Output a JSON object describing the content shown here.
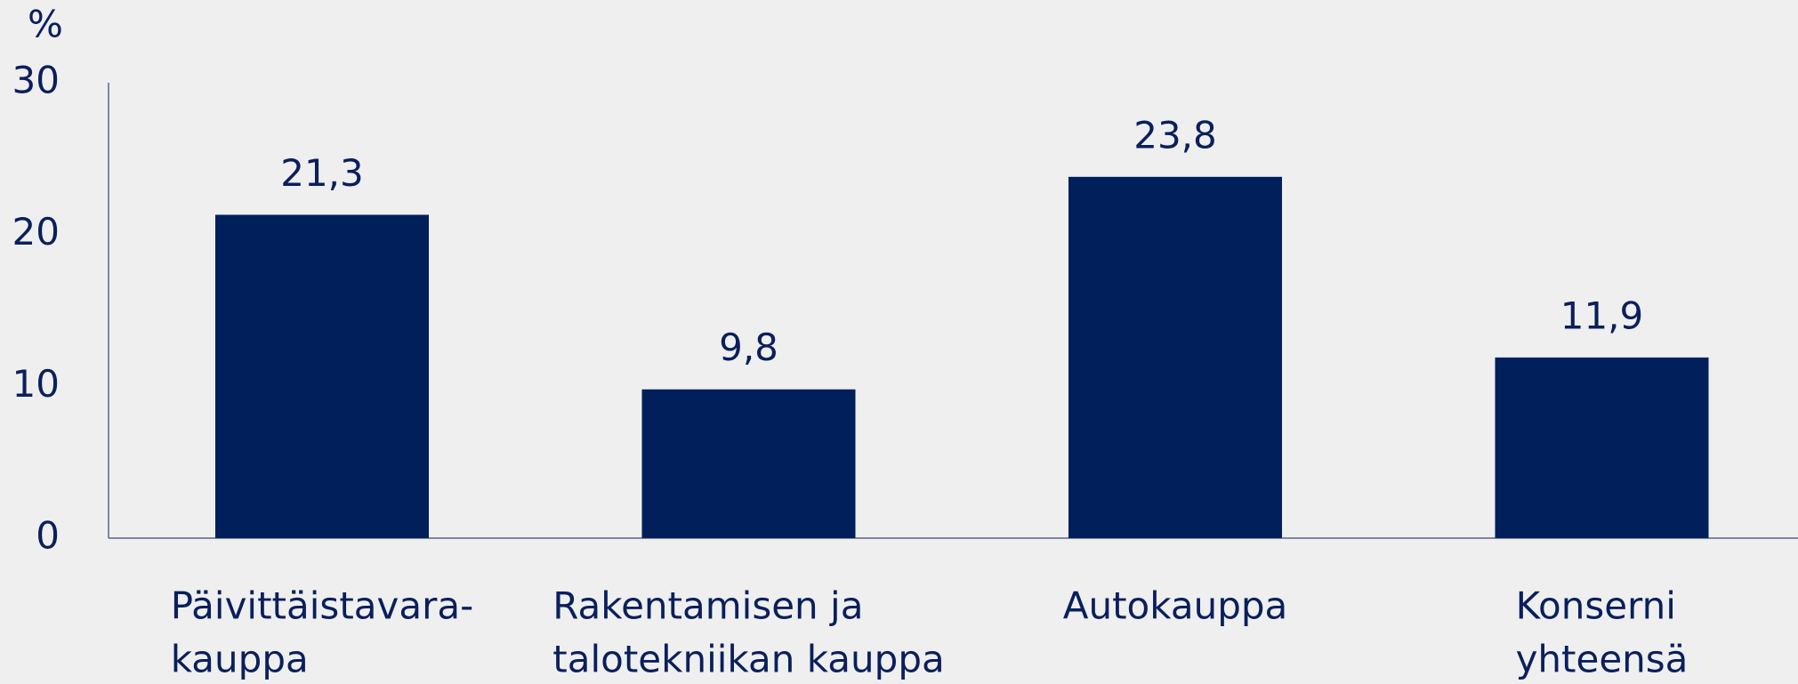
{
  "chart_data": {
    "type": "bar",
    "y_label": "%",
    "categories": [
      [
        "Päivittäistavara-",
        "kauppa"
      ],
      [
        "Rakentamisen ja",
        "talotekniikan kauppa"
      ],
      [
        "Autokauppa"
      ],
      [
        "Konserni",
        "yhteensä"
      ]
    ],
    "values": [
      21.3,
      9.8,
      23.8,
      11.9
    ],
    "value_labels": [
      "21,3",
      "9,8",
      "23,8",
      "11,9"
    ],
    "color": "#001f5b",
    "ylim": [
      0,
      30
    ],
    "yticks": [
      0,
      10,
      20,
      30
    ],
    "grid": false
  }
}
